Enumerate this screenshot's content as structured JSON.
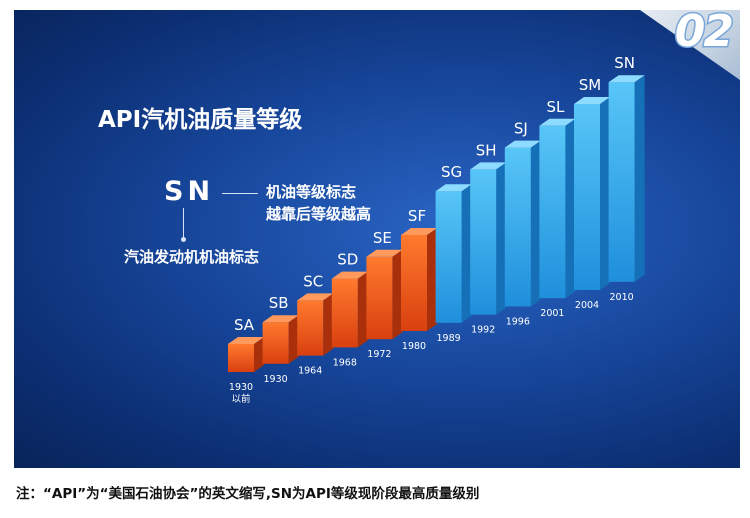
{
  "page_badge": "02",
  "title": "API汽机油质量等级",
  "legend": {
    "code": "SN",
    "grade_note_line1": "机油等级标志",
    "grade_note_line2": "越靠后等级越高",
    "engine_note": "汽油发动机机油标志"
  },
  "chart_data": {
    "type": "bar",
    "title": "API汽机油质量等级",
    "categories": [
      "SA",
      "SB",
      "SC",
      "SD",
      "SE",
      "SF",
      "SG",
      "SH",
      "SJ",
      "SL",
      "SM",
      "SN"
    ],
    "years": [
      "1930以前",
      "1930",
      "1964",
      "1968",
      "1972",
      "1980",
      "1989",
      "1992",
      "1996",
      "2001",
      "2004",
      "2010"
    ],
    "rank": [
      1,
      2,
      3,
      4,
      5,
      6,
      7,
      8,
      9,
      10,
      11,
      12
    ],
    "colors": {
      "orange_group": [
        "SA",
        "SB",
        "SC",
        "SD",
        "SE",
        "SF"
      ],
      "blue_group": [
        "SG",
        "SH",
        "SJ",
        "SL",
        "SM",
        "SN"
      ],
      "orange": "#e8561c",
      "blue": "#2aa8ea"
    },
    "xlabel": "",
    "ylabel": "",
    "grid": false
  },
  "footnote": "注：“API”为“美国石油协会”的英文缩写,SN为API等级现阶段最高质量级别",
  "colors": {
    "background": "#17479c",
    "text": "#ffffff",
    "footnote_text": "#111111"
  }
}
